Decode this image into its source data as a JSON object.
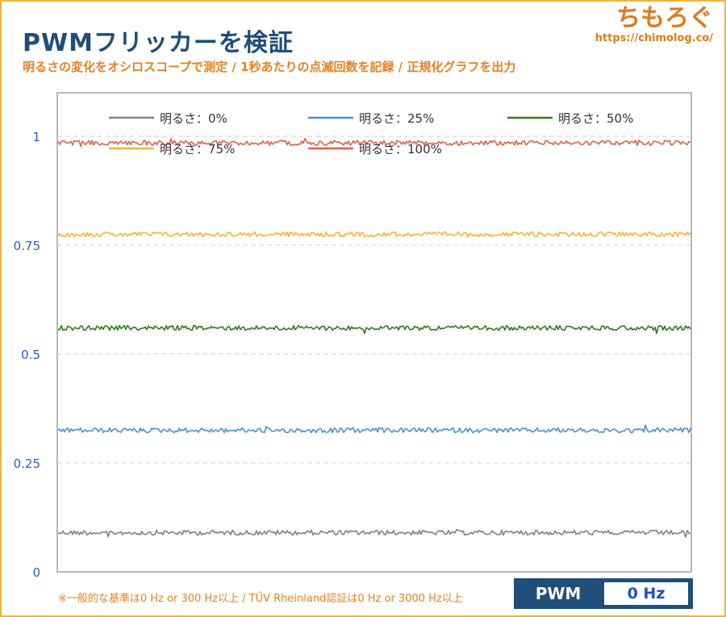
{
  "header": {
    "title": "PWMフリッカーを検証",
    "subtitle": "明るさの変化をオシロスコープで測定 / 1秒あたりの点滅回数を記録 / 正規化グラフを出力"
  },
  "logo": {
    "name": "ちもろぐ",
    "url": "https://chimolog.co/"
  },
  "footer": {
    "note": "※一般的な基準は0 Hz or 300 Hz以上 / TÜV Rheinland認証は0 Hz or 3000 Hz以上",
    "pwm_label": "PWM",
    "pwm_value": "0 Hz"
  },
  "chart_data": {
    "type": "line",
    "ylim": [
      0,
      1.1
    ],
    "yticks": [
      {
        "value": 0,
        "label": "0"
      },
      {
        "value": 0.25,
        "label": "0.25"
      },
      {
        "value": 0.5,
        "label": "0.5"
      },
      {
        "value": 0.75,
        "label": "0.75"
      },
      {
        "value": 1,
        "label": "1"
      }
    ],
    "grid": true,
    "legend_position": "top",
    "series": [
      {
        "name": "明るさ：0%",
        "value": 0.09,
        "color": "#808080"
      },
      {
        "name": "明るさ：25%",
        "value": 0.325,
        "color": "#4a90d9"
      },
      {
        "name": "明るさ：50%",
        "value": 0.56,
        "color": "#2e7d1e"
      },
      {
        "name": "明るさ：75%",
        "value": 0.775,
        "color": "#f5b335"
      },
      {
        "name": "明るさ：100%",
        "value": 0.985,
        "color": "#e0604a"
      }
    ]
  }
}
